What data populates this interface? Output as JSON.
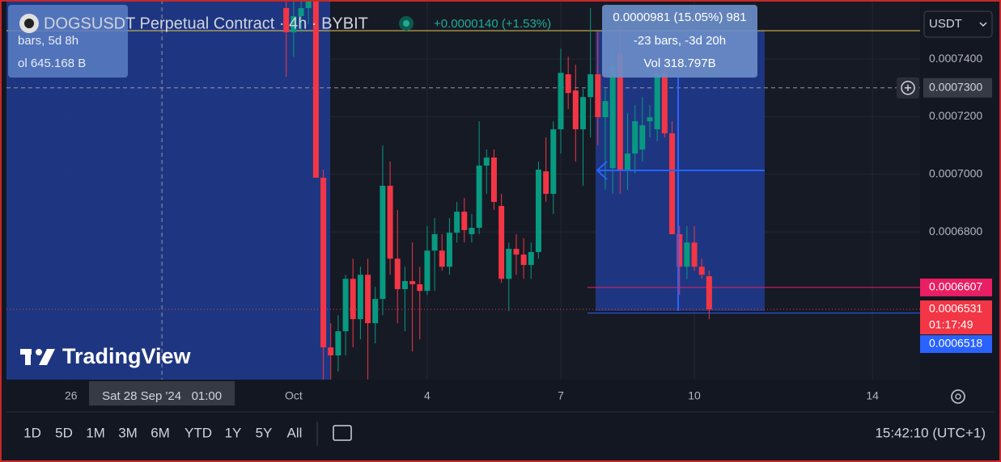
{
  "header": {
    "title": "DOGSUSDT Perpetual Contract · 4h · BYBIT",
    "change": "+0.0000140 (+1.53%)",
    "currency": "USDT"
  },
  "measure_left": [
    "bars, 5d 8h",
    "ol 645.168 B"
  ],
  "measure_right": [
    "0.0000981 (15.05%) 981",
    "-23 bars, -3d 20h",
    "Vol 318.797B"
  ],
  "watermark": "TradingView",
  "toolbar": {
    "ranges": [
      "1D",
      "5D",
      "1M",
      "3M",
      "6M",
      "YTD",
      "1Y",
      "5Y",
      "All"
    ],
    "clock": "15:42:10 (UTC+1)"
  },
  "chart_data": {
    "type": "candlestick",
    "x": [
      0.833,
      1,
      1.167,
      1.333,
      1.5,
      1.667,
      1.833,
      2,
      2.167,
      2.333,
      2.5,
      2.667,
      2.833,
      3,
      3.167,
      3.333,
      3.5,
      3.667,
      3.833,
      4,
      4.167,
      4.333,
      4.5,
      4.667,
      4.833,
      5,
      5.167,
      5.333,
      5.5,
      5.667,
      5.833,
      6,
      6.167,
      6.333,
      6.5,
      6.667,
      6.833,
      7,
      7.167,
      7.333,
      7.5,
      7.667,
      7.833,
      8,
      8.167,
      8.333,
      8.5,
      8.667,
      8.833,
      9,
      9.167,
      9.333,
      9.5,
      9.667,
      9.833,
      10,
      10.167,
      10.333
    ],
    "open": [
      0.0007577,
      0.0007493,
      0.0007549,
      0.0007577,
      0.0007605,
      0.0006988,
      0.0006399,
      0.0006371,
      0.0006455,
      0.0006637,
      0.0006497,
      0.0006651,
      0.0006483,
      0.0006567,
      0.000696,
      0.0006707,
      0.0006601,
      0.0006629,
      0.0006618,
      0.0006595,
      0.0006735,
      0.0006735,
      0.0006679,
      0.0006797,
      0.000687,
      0.0006792,
      0.0006814,
      0.000703,
      0.0007058,
      0.000689,
      0.0006637,
      0.0006741,
      0.0006721,
      0.0006685,
      0.000673,
      0.000701,
      0.0006932,
      0.0007156,
      0.0007347,
      0.0007291,
      0.0007156,
      0.0007268,
      0.0007347,
      0.0007198,
      0.0007021,
      0.0007422,
      0.0007016,
      0.0007072,
      0.0007086,
      0.0007184,
      0.0007156,
      0.0007352,
      0.0007142,
      0.0006792,
      0.0006679,
      0.0006763,
      0.0006679,
      0.0006646
    ],
    "high": [
      0.0007605,
      0.0007605,
      0.0007605,
      0.0007605,
      0.0007605,
      0.0007016,
      0.0006483,
      0.0006511,
      0.0006651,
      0.0006707,
      0.0006679,
      0.0006707,
      0.0006609,
      0.00071,
      0.0007044,
      0.0006876,
      0.0006679,
      0.0006763,
      0.0006679,
      0.000682,
      0.0006848,
      0.0006792,
      0.0006848,
      0.0006904,
      0.0006918,
      0.0006862,
      0.0007184,
      0.0007086,
      0.0007086,
      0.0006932,
      0.0006763,
      0.0006792,
      0.0006778,
      0.0006763,
      0.0007044,
      0.0007128,
      0.0007184,
      0.0007436,
      0.0007408,
      0.000738,
      0.0007296,
      0.0007577,
      0.0007493,
      0.0007296,
      0.0007436,
      0.0007521,
      0.0007212,
      0.000724,
      0.0007268,
      0.000724,
      0.000738,
      0.0007408,
      0.0007184,
      0.000682,
      0.000682,
      0.000682,
      0.0006707,
      0.0006665
    ],
    "low": [
      0.0007338,
      0.0007408,
      0.0007493,
      0.0007521,
      0.0006988,
      0.0006287,
      0.0006287,
      0.0006315,
      0.0006371,
      0.0006399,
      0.0006427,
      0.0006287,
      0.0006413,
      0.0006511,
      0.0006651,
      0.0006483,
      0.0006455,
      0.0006385,
      0.0006427,
      0.0006581,
      0.0006595,
      0.0006665,
      0.0006651,
      0.0006763,
      0.0006763,
      0.0006763,
      0.0006792,
      0.0006932,
      0.0006876,
      0.0006623,
      0.0006525,
      0.0006651,
      0.0006637,
      0.0006637,
      0.0006707,
      0.0006904,
      0.0006862,
      0.0007072,
      0.0007226,
      0.0007044,
      0.000696,
      0.0007128,
      0.00071,
      0.0006946,
      0.0006932,
      0.0006932,
      0.0006946,
      0.0007002,
      0.0007044,
      0.0007128,
      0.0007114,
      0.0007128,
      0.0006792,
      0.0006581,
      0.0006637,
      0.0006665,
      0.0006637,
      0.0006497
    ],
    "close": [
      0.0007493,
      0.0007549,
      0.0007577,
      0.0007605,
      0.0006988,
      0.0006399,
      0.0006371,
      0.0006455,
      0.0006637,
      0.0006497,
      0.0006651,
      0.0006483,
      0.0006567,
      0.000696,
      0.0006707,
      0.0006601,
      0.0006629,
      0.0006618,
      0.0006595,
      0.0006735,
      0.0006792,
      0.0006679,
      0.0006797,
      0.000687,
      0.0006806,
      0.0006814,
      0.000703,
      0.0007058,
      0.0006904,
      0.0006637,
      0.0006741,
      0.0006721,
      0.0006685,
      0.000673,
      0.0007016,
      0.0006932,
      0.0007156,
      0.0007352,
      0.0007282,
      0.0007156,
      0.0007268,
      0.0007347,
      0.0007198,
      0.0007254,
      0.000738,
      0.0007016,
      0.0007072,
      0.0007184,
      0.000717,
      0.0007198,
      0.0007352,
      0.0007142,
      0.0006792,
      0.0006679,
      0.0006763,
      0.0006679,
      0.0006651,
      0.0006531
    ],
    "up_color": "#089981",
    "down_color": "#f23645",
    "xlim": [
      -5.45,
      15.07
    ],
    "xticks": [
      {
        "value": -4,
        "label": "26"
      },
      {
        "value": 1,
        "label": "Oct"
      },
      4,
      7,
      10,
      14
    ],
    "ylim": [
      0.0006287,
      0.0007605
    ],
    "yticks": [
      {
        "value": 0.00068,
        "label": "0.0006800"
      },
      {
        "value": 0.0007,
        "label": "0.0007000"
      },
      {
        "value": 0.00072,
        "label": "0.0007200"
      },
      {
        "value": 0.00074,
        "label": "0.0007400"
      }
    ],
    "grid": true,
    "price_tags": [
      {
        "price": 0.0006607,
        "color": "#e91e63"
      },
      {
        "price": 0.0006531,
        "countdown": "01:17:49",
        "color": "#f23645"
      },
      {
        "price": 0.0006518,
        "color": "#2962ff"
      }
    ],
    "crosshair": {
      "x": -1.958,
      "x_label": "Sat 28 Sep '24   01:00",
      "y": {
        "value": 0.00073,
        "label": "0.0007300"
      }
    }
  }
}
